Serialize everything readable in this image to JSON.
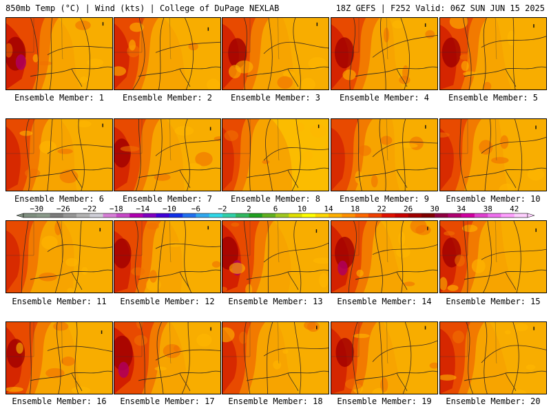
{
  "header": {
    "left_title": "850mb Temp (°C) | Wind (kts) | College of DuPage NEXLAB",
    "right_title": "18Z GEFS | F252 Valid: 06Z SUN JUN 15 2025"
  },
  "colorbar": {
    "tick_labels": [
      "−30",
      "−26",
      "−22",
      "−18",
      "−14",
      "−10",
      "−6",
      "−2",
      "2",
      "6",
      "10",
      "14",
      "18",
      "22",
      "26",
      "30",
      "34",
      "38",
      "42"
    ],
    "colors": [
      "#7f8f80",
      "#8a9a8a",
      "#7c7c7c",
      "#969696",
      "#b4b4b4",
      "#cfcfd8",
      "#d77fd7",
      "#c848c8",
      "#b000b0",
      "#8000c0",
      "#4000d8",
      "#1030e8",
      "#2070f0",
      "#30a8f0",
      "#30d8e8",
      "#30d0a8",
      "#30b860",
      "#20a020",
      "#60b020",
      "#a0c820",
      "#e0e000",
      "#ffff00",
      "#ffd800",
      "#ffb000",
      "#ff9000",
      "#ff6800",
      "#f04000",
      "#e01000",
      "#c80000",
      "#a00000",
      "#800000",
      "#900040",
      "#b00070",
      "#d000a0",
      "#e040d0",
      "#f070f0",
      "#ffa0ff",
      "#ffd0ff"
    ]
  },
  "members": [
    {
      "label": "Ensemble Member: 1",
      "intensity": 0.9
    },
    {
      "label": "Ensemble Member: 2",
      "intensity": 0.6
    },
    {
      "label": "Ensemble Member: 3",
      "intensity": 0.7
    },
    {
      "label": "Ensemble Member: 4",
      "intensity": 0.75
    },
    {
      "label": "Ensemble Member: 5",
      "intensity": 0.7
    },
    {
      "label": "Ensemble Member: 6",
      "intensity": 0.55
    },
    {
      "label": "Ensemble Member: 7",
      "intensity": 0.65
    },
    {
      "label": "Ensemble Member: 8",
      "intensity": 0.35
    },
    {
      "label": "Ensemble Member: 9",
      "intensity": 0.5
    },
    {
      "label": "Ensemble Member: 10",
      "intensity": 0.5
    },
    {
      "label": "Ensemble Member: 11",
      "intensity": 0.5
    },
    {
      "label": "Ensemble Member: 12",
      "intensity": 0.7
    },
    {
      "label": "Ensemble Member: 13",
      "intensity": 0.85
    },
    {
      "label": "Ensemble Member: 14",
      "intensity": 0.8
    },
    {
      "label": "Ensemble Member: 15",
      "intensity": 0.7
    },
    {
      "label": "Ensemble Member: 16",
      "intensity": 0.65
    },
    {
      "label": "Ensemble Member: 17",
      "intensity": 0.95
    },
    {
      "label": "Ensemble Member: 18",
      "intensity": 0.55
    },
    {
      "label": "Ensemble Member: 19",
      "intensity": 0.65
    },
    {
      "label": "Ensemble Member: 20",
      "intensity": 0.6
    }
  ]
}
